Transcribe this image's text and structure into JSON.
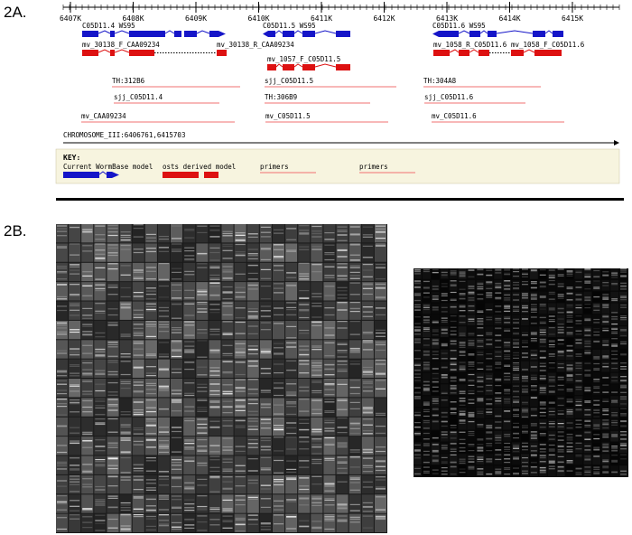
{
  "panels": {
    "a_label": "2A.",
    "b_label": "2B."
  },
  "ticks": [
    "6407K",
    "6408K",
    "6409K",
    "6410K",
    "6411K",
    "6412K",
    "6413K",
    "6414K",
    "6415K"
  ],
  "tracks": {
    "wormbase_labels": [
      "C05D11.4 WS95",
      "C05D11.5 WS95",
      "C05D11.6 WS95"
    ],
    "est_labels": [
      "mv_30138_F_CAA09234",
      "mv_30138_R_CAA09234",
      "mv_1057_F_C05D11.5",
      "mv_1058_R_C05D11.6",
      "mv_1058_F_C05D11.6"
    ],
    "primer_row1": [
      "TH:312B6",
      "TH:304A8"
    ],
    "primer_row2": [
      "sjj_C05D11.4",
      "TH:306B9",
      "sjj_C05D11.6"
    ],
    "primer_row3": [
      "sjj_C05D11.5"
    ],
    "primer_row4": [
      "mv_CAA09234",
      "mv_C05D11.5",
      "mv_C05D11.6"
    ]
  },
  "chromosome": "CHROMOSOME_III:6406761,6415703",
  "key": {
    "title": "KEY:",
    "items": [
      "Current WormBase model",
      "osts derived model",
      "primers",
      "primers"
    ]
  },
  "colors": {
    "wormbase": "#1515c8",
    "est": "#dd1111",
    "primer_line": "#f07070",
    "key_bg": "#f7f4df"
  }
}
